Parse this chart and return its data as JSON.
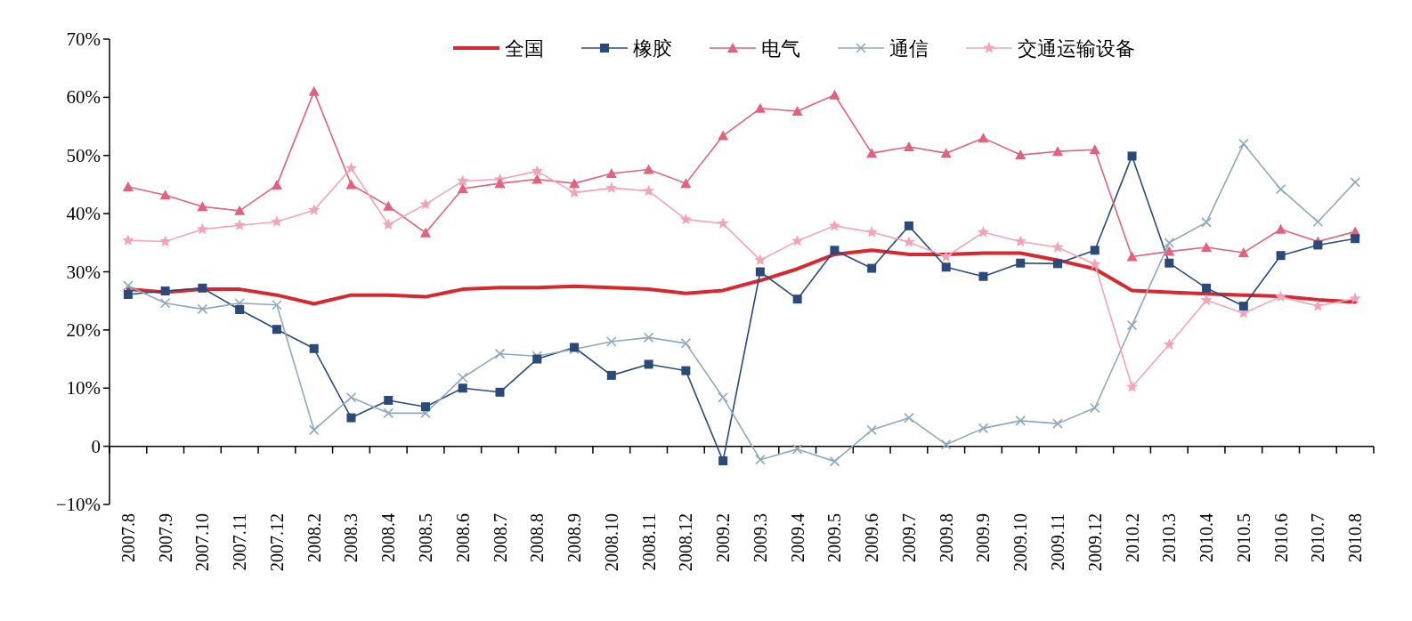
{
  "chart_data": {
    "type": "line",
    "categories": [
      "2007.8",
      "2007.9",
      "2007.10",
      "2007.11",
      "2007.12",
      "2008.2",
      "2008.3",
      "2008.4",
      "2008.5",
      "2008.6",
      "2008.7",
      "2008.8",
      "2008.9",
      "2008.10",
      "2008.11",
      "2008.12",
      "2009.2",
      "2009.3",
      "2009.4",
      "2009.5",
      "2009.6",
      "2009.7",
      "2009.8",
      "2009.9",
      "2009.10",
      "2009.11",
      "2009.12",
      "2010.2",
      "2010.3",
      "2010.4",
      "2010.5",
      "2010.6",
      "2010.7",
      "2010.8"
    ],
    "ylim": [
      -10,
      70
    ],
    "yticks": [
      {
        "value": -10,
        "label": "−10%"
      },
      {
        "value": 0,
        "label": "0"
      },
      {
        "value": 10,
        "label": "10%"
      },
      {
        "value": 20,
        "label": "20%"
      },
      {
        "value": 30,
        "label": "30%"
      },
      {
        "value": 40,
        "label": "40%"
      },
      {
        "value": 50,
        "label": "50%"
      },
      {
        "value": 60,
        "label": "60%"
      },
      {
        "value": 70,
        "label": "70%"
      }
    ],
    "legend": "top",
    "line_style": "solid",
    "series": [
      {
        "name": "全国",
        "color": "#d7282f",
        "marker": "none",
        "values": [
          27,
          26.5,
          27,
          27,
          26,
          24.5,
          26,
          26,
          25.7,
          27,
          27.3,
          27.3,
          27.5,
          27.3,
          27,
          26.3,
          26.8,
          28.5,
          30.5,
          33,
          33.7,
          33,
          33,
          33.2,
          33.2,
          32,
          30.5,
          26.8,
          26.5,
          26.2,
          26,
          25.8,
          25.2,
          24.8
        ]
      },
      {
        "name": "橡胶",
        "color": "#2b4a7a",
        "marker": "square",
        "values": [
          26.1,
          26.7,
          27.2,
          23.5,
          20.1,
          16.8,
          4.9,
          7.9,
          6.8,
          10,
          9.3,
          15,
          17,
          12.2,
          14.1,
          13,
          -2.5,
          30,
          25.3,
          33.7,
          30.6,
          37.9,
          30.8,
          29.2,
          31.5,
          31.4,
          33.7,
          49.9,
          31.5,
          27.2,
          24.1,
          32.8,
          34.6,
          35.7
        ]
      },
      {
        "name": "电气",
        "color": "#e0627c",
        "marker": "triangle",
        "values": [
          44.6,
          43.2,
          41.2,
          40.5,
          44.9,
          61,
          45,
          41.3,
          36.7,
          44.3,
          45.2,
          45.9,
          45.2,
          46.9,
          47.6,
          45.2,
          53.4,
          58.1,
          57.6,
          60.4,
          50.4,
          51.5,
          50.4,
          53,
          50.1,
          50.7,
          51,
          32.6,
          33.5,
          34.2,
          33.3,
          37.3,
          35.2,
          36.9
        ]
      },
      {
        "name": "通信",
        "color": "#8fa9bb",
        "marker": "cross",
        "values": [
          27.6,
          24.6,
          23.6,
          24.6,
          24.3,
          2.8,
          8.4,
          5.7,
          5.7,
          11.8,
          15.9,
          15.5,
          16.7,
          18,
          18.7,
          17.7,
          8.4,
          -2.3,
          -0.5,
          -2.6,
          2.8,
          4.9,
          0.3,
          3.1,
          4.4,
          3.9,
          6.6,
          20.8,
          35,
          38.5,
          52,
          44.2,
          38.6,
          45.4
        ]
      },
      {
        "name": "交通运输设备",
        "color": "#f3a3b8",
        "marker": "star",
        "values": [
          35.4,
          35.2,
          37.3,
          38,
          38.6,
          40.6,
          47.8,
          38.1,
          41.6,
          45.6,
          45.9,
          47.3,
          43.6,
          44.4,
          43.9,
          39,
          38.3,
          32,
          35.3,
          37.9,
          36.8,
          35.1,
          32.6,
          36.8,
          35.2,
          34.2,
          31.3,
          10.2,
          17.5,
          25.1,
          22.9,
          25.7,
          24.1,
          25.4
        ]
      }
    ]
  }
}
